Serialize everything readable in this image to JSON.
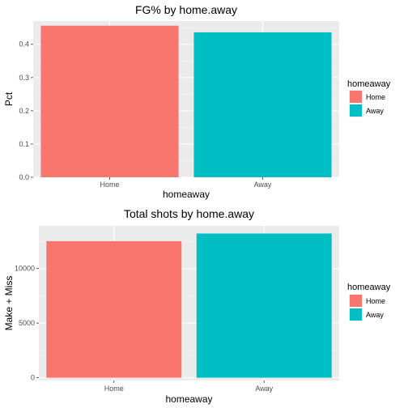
{
  "chart_data": [
    {
      "type": "bar",
      "title": "FG% by home.away",
      "xlabel": "homeaway",
      "ylabel": "Pct",
      "categories": [
        "Home",
        "Away"
      ],
      "values": [
        0.456,
        0.436
      ],
      "colors": [
        "#F8766D",
        "#00BFC4"
      ],
      "ylim": [
        0,
        0.47
      ],
      "yticks": [
        0.0,
        0.1,
        0.2,
        0.3,
        0.4
      ],
      "ytick_labels": [
        "0.0",
        "0.1",
        "0.2",
        "0.3",
        "0.4"
      ],
      "grid": true,
      "legend": {
        "title": "homeaway",
        "position": "right",
        "entries": [
          "Home",
          "Away"
        ]
      }
    },
    {
      "type": "bar",
      "title": "Total shots by home.away",
      "xlabel": "homeaway",
      "ylabel": "Make + Miss",
      "categories": [
        "Home",
        "Away"
      ],
      "values": [
        12500,
        13200
      ],
      "colors": [
        "#F8766D",
        "#00BFC4"
      ],
      "ylim": [
        -250,
        13900
      ],
      "yticks": [
        0,
        5000,
        10000
      ],
      "ytick_labels": [
        "0",
        "5000",
        "10000"
      ],
      "grid": true,
      "legend": {
        "title": "homeaway",
        "position": "right",
        "entries": [
          "Home",
          "Away"
        ]
      }
    }
  ]
}
